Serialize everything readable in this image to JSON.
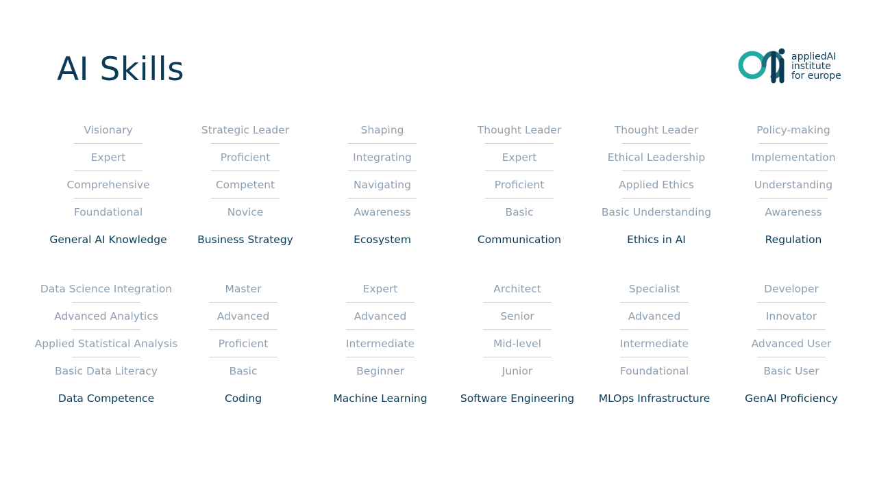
{
  "header": {
    "title": "AI Skills"
  },
  "logo": {
    "line1": "appliedAI",
    "line2": "institute",
    "line3": "for europe",
    "icon": "aai-logo-icon",
    "colors": {
      "teal": "#23a9a5",
      "navy": "#0a3a55"
    }
  },
  "rows": [
    {
      "columns": [
        {
          "category": "General AI Knowledge",
          "levels": [
            "Visionary",
            "Expert",
            "Comprehensive",
            "Foundational"
          ]
        },
        {
          "category": "Business Strategy",
          "levels": [
            "Strategic Leader",
            "Proficient",
            "Competent",
            "Novice"
          ]
        },
        {
          "category": "Ecosystem",
          "levels": [
            "Shaping",
            "Integrating",
            "Navigating",
            "Awareness"
          ]
        },
        {
          "category": "Communication",
          "levels": [
            "Thought Leader",
            "Expert",
            "Proficient",
            "Basic"
          ]
        },
        {
          "category": "Ethics in AI",
          "levels": [
            "Thought Leader",
            "Ethical Leadership",
            "Applied Ethics",
            "Basic Understanding"
          ]
        },
        {
          "category": "Regulation",
          "levels": [
            "Policy-making",
            "Implementation",
            "Understanding",
            "Awareness"
          ]
        }
      ]
    },
    {
      "columns": [
        {
          "category": "Data Competence",
          "levels": [
            "Data Science Integration",
            "Advanced Analytics",
            "Applied Statistical Analysis",
            "Basic Data Literacy"
          ]
        },
        {
          "category": "Coding",
          "levels": [
            "Master",
            "Advanced",
            "Proficient",
            "Basic"
          ]
        },
        {
          "category": "Machine Learning",
          "levels": [
            "Expert",
            "Advanced",
            "Intermediate",
            "Beginner"
          ]
        },
        {
          "category": "Software Engineering",
          "levels": [
            "Architect",
            "Senior",
            "Mid-level",
            "Junior"
          ]
        },
        {
          "category": "MLOps Infrastructure",
          "levels": [
            "Specialist",
            "Advanced",
            "Intermediate",
            "Foundational"
          ]
        },
        {
          "category": "GenAI Proficiency",
          "levels": [
            "Developer",
            "Innovator",
            "Advanced User",
            "Basic User"
          ]
        }
      ]
    }
  ]
}
